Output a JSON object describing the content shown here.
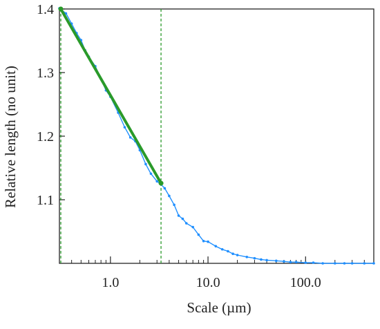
{
  "chart_data": {
    "type": "line",
    "title": "",
    "xlabel": "Scale (µm)",
    "ylabel": "Relative length (no unit)",
    "x_scale": "log",
    "xlim": [
      0.3,
      500
    ],
    "ylim": [
      1.0,
      1.4
    ],
    "x_ticks": [
      {
        "value": 1,
        "label": "1.0"
      },
      {
        "value": 10,
        "label": "10.0"
      },
      {
        "value": 100,
        "label": "100.0"
      }
    ],
    "y_ticks": [
      {
        "value": 1.1,
        "label": "1.1"
      },
      {
        "value": 1.2,
        "label": "1.2"
      },
      {
        "value": 1.3,
        "label": "1.3"
      },
      {
        "value": 1.4,
        "label": "1.4"
      }
    ],
    "grid": false,
    "legend": "none",
    "series": [
      {
        "color": "#1f8fff",
        "style": "dotted line",
        "x": [
          0.3,
          0.35,
          0.4,
          0.45,
          0.5,
          0.55,
          0.6,
          0.7,
          0.8,
          0.9,
          1.0,
          1.2,
          1.4,
          1.6,
          1.8,
          2.0,
          2.3,
          2.6,
          3.0,
          3.3,
          3.6,
          4.0,
          4.5,
          5.0,
          5.5,
          6.0,
          7.0,
          8.0,
          9.0,
          10,
          12,
          14,
          16,
          18,
          20,
          25,
          30,
          35,
          40,
          50,
          60,
          70,
          80,
          100,
          120,
          150,
          200,
          250,
          300,
          400,
          500
        ],
        "y": [
          1.401,
          1.393,
          1.377,
          1.362,
          1.351,
          1.335,
          1.325,
          1.31,
          1.29,
          1.272,
          1.262,
          1.237,
          1.214,
          1.198,
          1.192,
          1.178,
          1.156,
          1.141,
          1.129,
          1.124,
          1.118,
          1.106,
          1.092,
          1.075,
          1.07,
          1.063,
          1.057,
          1.045,
          1.035,
          1.034,
          1.027,
          1.022,
          1.019,
          1.015,
          1.013,
          1.01,
          1.008,
          1.006,
          1.005,
          1.004,
          1.003,
          1.002,
          1.002,
          1.001,
          1.001,
          1.0,
          1.0,
          1.0,
          1.0,
          1.0,
          1.0
        ]
      },
      {
        "color": "#2a9a2a",
        "style": "solid fit line",
        "x": [
          0.31,
          3.3
        ],
        "y": [
          1.4,
          1.126
        ]
      }
    ],
    "vertical_lines": [
      {
        "x": 0.31,
        "color": "#2a9a2a",
        "style": "dashed"
      },
      {
        "x": 3.3,
        "color": "#2a9a2a",
        "style": "dashed"
      }
    ]
  }
}
